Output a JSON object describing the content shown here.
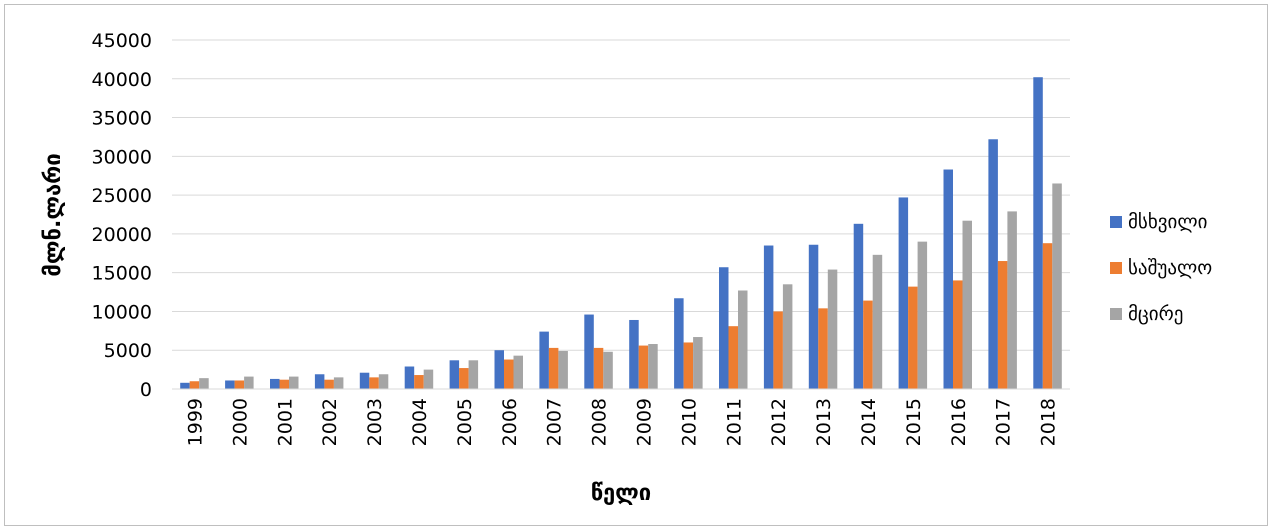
{
  "chart_data": {
    "type": "bar",
    "title": "",
    "xlabel": "წელი",
    "ylabel": "მლნ.ლარი",
    "ylim": [
      0,
      45000
    ],
    "yticks": [
      0,
      5000,
      10000,
      15000,
      20000,
      25000,
      30000,
      35000,
      40000,
      45000
    ],
    "grid": true,
    "legend_position": "right",
    "categories": [
      "1999",
      "2000",
      "2001",
      "2002",
      "2003",
      "2004",
      "2005",
      "2006",
      "2007",
      "2008",
      "2009",
      "2010",
      "2011",
      "2012",
      "2013",
      "2014",
      "2015",
      "2016",
      "2017",
      "2018"
    ],
    "series": [
      {
        "name": "მსხვილი",
        "color": "#4472C4",
        "values": [
          800,
          1100,
          1300,
          1900,
          2100,
          2900,
          3700,
          5000,
          7400,
          9600,
          8900,
          11700,
          15700,
          18500,
          18600,
          21300,
          24700,
          28300,
          32200,
          40200
        ]
      },
      {
        "name": "საშუალო",
        "color": "#ED7D31",
        "values": [
          1000,
          1100,
          1200,
          1200,
          1500,
          1800,
          2700,
          3800,
          5300,
          5300,
          5600,
          6000,
          8100,
          10000,
          10400,
          11400,
          13200,
          14000,
          16500,
          18800
        ]
      },
      {
        "name": "მცირე",
        "color": "#A5A5A5",
        "values": [
          1400,
          1600,
          1600,
          1500,
          1900,
          2500,
          3700,
          4300,
          4900,
          4800,
          5800,
          6700,
          12700,
          13500,
          15400,
          17300,
          19000,
          21700,
          22900,
          26500
        ]
      }
    ]
  }
}
